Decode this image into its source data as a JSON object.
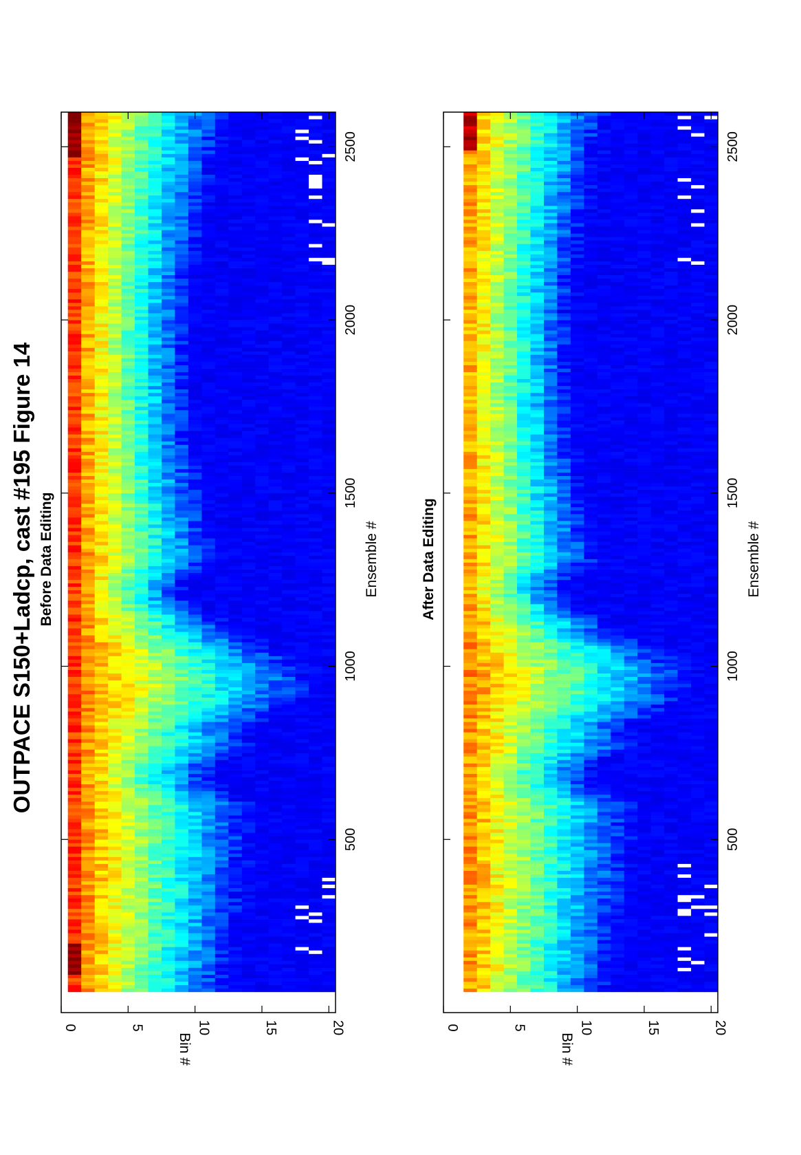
{
  "figure": {
    "title": "OUTPACE S150+Ladcp, cast #195  Figure 14"
  },
  "chart_data": [
    {
      "type": "heatmap",
      "title": "Before Data Editing",
      "xlabel": "Ensemble #",
      "ylabel": "Bin #",
      "xlim": [
        0,
        2600
      ],
      "ylim": [
        0,
        20.5
      ],
      "xticks": [
        500,
        1000,
        1500,
        2000,
        2500
      ],
      "yticks": [
        0,
        5,
        10,
        15,
        20
      ],
      "bins": [
        1,
        20
      ],
      "orientation": "rotated-90",
      "colormap": "jet",
      "grid": false,
      "description_values": {
        "high_near_bin1": true,
        "bin1_peak_ensembles": [
          [
            100,
            200
          ],
          [
            2460,
            2600
          ]
        ],
        "deep_penetration_ensembles": [
          850,
          1100
        ],
        "minimum_at_ensembles": [
          650,
          1200
        ]
      }
    },
    {
      "type": "heatmap",
      "title": "After Data Editing",
      "xlabel": "Ensemble #",
      "ylabel": "Bin #",
      "xlim": [
        0,
        2600
      ],
      "ylim": [
        0,
        20.5
      ],
      "xticks": [
        500,
        1000,
        1500,
        2000,
        2500
      ],
      "yticks": [
        0,
        5,
        10,
        15,
        20
      ],
      "bins": [
        2,
        20
      ],
      "orientation": "rotated-90",
      "colormap": "jet",
      "grid": false,
      "description_values": {
        "bin1_removed": true,
        "deep_penetration_ensembles": [
          850,
          1100
        ],
        "minimum_at_ensembles": [
          650,
          1200
        ]
      }
    }
  ]
}
